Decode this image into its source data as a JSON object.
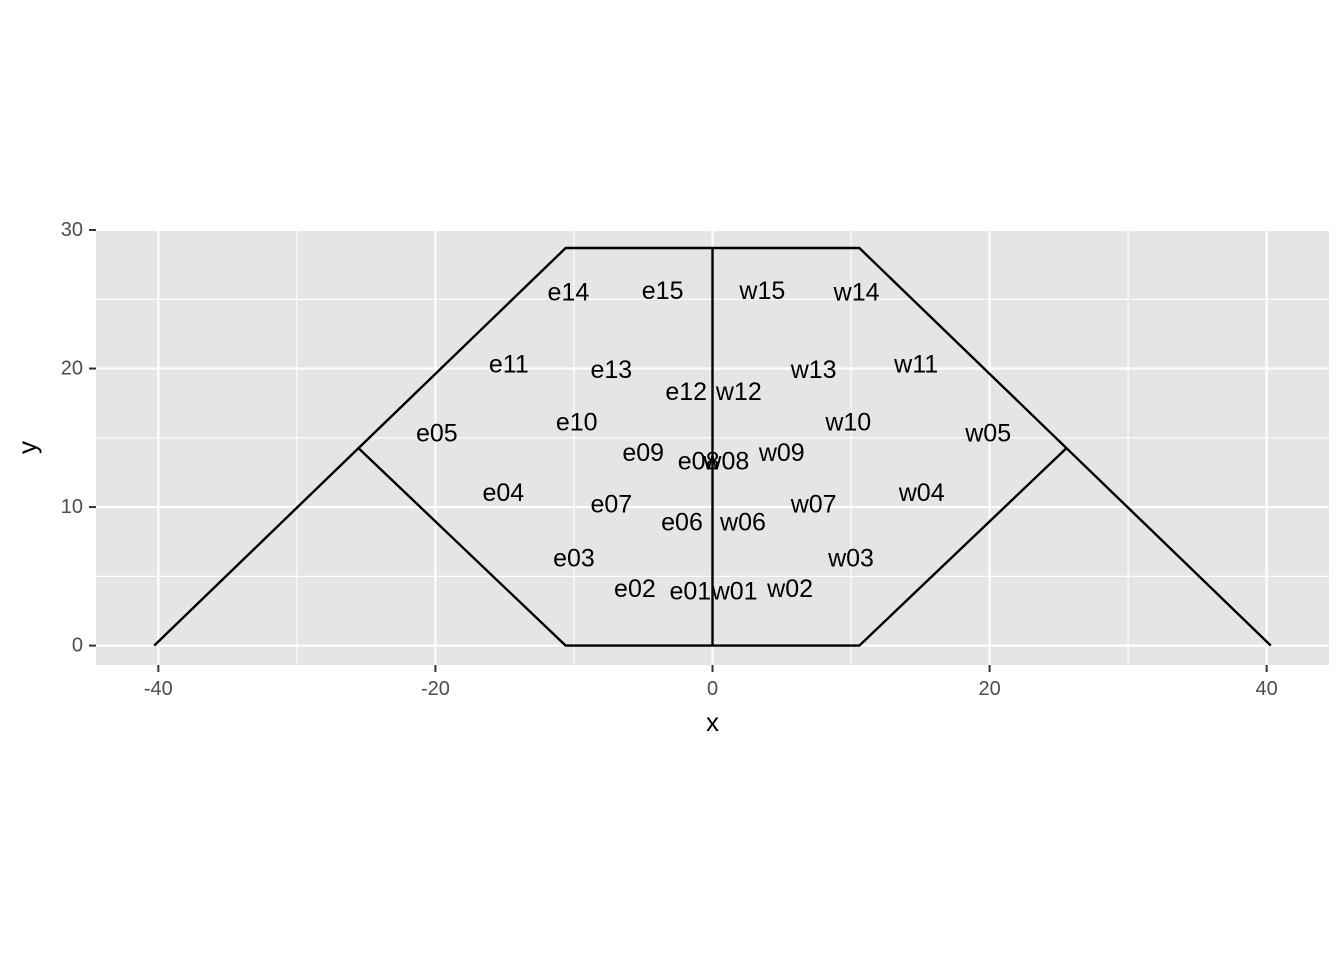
{
  "chart_data": {
    "type": "scatter",
    "title": "",
    "xlabel": "x",
    "ylabel": "y",
    "xlim": [
      -44.5,
      44.5
    ],
    "ylim": [
      -1.4,
      30
    ],
    "x_ticks": [
      -40,
      -20,
      0,
      20,
      40
    ],
    "x_tick_labels": [
      "-40",
      "-20",
      "0",
      "20",
      "40"
    ],
    "y_ticks": [
      0,
      10,
      20,
      30
    ],
    "y_tick_labels": [
      "0",
      "10",
      "20",
      "30"
    ],
    "x_minor_grid": [
      -30,
      -10,
      10,
      30
    ],
    "y_minor_grid": [
      5,
      15,
      25
    ],
    "grid": true,
    "panel_color": "#e5e5e5",
    "grid_color": "#ffffff",
    "line_color": "#000000",
    "outline_paths": [
      {
        "name": "outer-boundary",
        "points": [
          [
            -40.3,
            0
          ],
          [
            -10.6,
            28.7
          ],
          [
            10.6,
            28.7
          ],
          [
            40.3,
            0
          ]
        ]
      },
      {
        "name": "inner-left",
        "points": [
          [
            -25.6,
            14.3
          ],
          [
            -10.6,
            0
          ],
          [
            0,
            0
          ]
        ]
      },
      {
        "name": "inner-right",
        "points": [
          [
            0,
            0
          ],
          [
            10.6,
            0
          ],
          [
            25.6,
            14.3
          ]
        ]
      },
      {
        "name": "center-line",
        "points": [
          [
            0,
            0
          ],
          [
            0,
            28.7
          ]
        ]
      }
    ],
    "labels": [
      {
        "text": "e01",
        "x": -1.6,
        "y": 3.9
      },
      {
        "text": "e02",
        "x": -5.6,
        "y": 4.1
      },
      {
        "text": "e03",
        "x": -10.0,
        "y": 6.3
      },
      {
        "text": "e04",
        "x": -15.1,
        "y": 11.0
      },
      {
        "text": "e05",
        "x": -19.9,
        "y": 15.3
      },
      {
        "text": "e06",
        "x": -2.2,
        "y": 8.9
      },
      {
        "text": "e07",
        "x": -7.3,
        "y": 10.2
      },
      {
        "text": "e08",
        "x": -1.0,
        "y": 13.3
      },
      {
        "text": "e09",
        "x": -5.0,
        "y": 13.9
      },
      {
        "text": "e10",
        "x": -9.8,
        "y": 16.1
      },
      {
        "text": "e11",
        "x": -14.7,
        "y": 20.3
      },
      {
        "text": "e12",
        "x": -1.9,
        "y": 18.3
      },
      {
        "text": "e13",
        "x": -7.3,
        "y": 19.9
      },
      {
        "text": "e14",
        "x": -10.4,
        "y": 25.5
      },
      {
        "text": "e15",
        "x": -3.6,
        "y": 25.6
      },
      {
        "text": "w01",
        "x": 1.6,
        "y": 3.9
      },
      {
        "text": "w02",
        "x": 5.6,
        "y": 4.1
      },
      {
        "text": "w03",
        "x": 10.0,
        "y": 6.3
      },
      {
        "text": "w04",
        "x": 15.1,
        "y": 11.0
      },
      {
        "text": "w05",
        "x": 19.9,
        "y": 15.3
      },
      {
        "text": "w06",
        "x": 2.2,
        "y": 8.9
      },
      {
        "text": "w07",
        "x": 7.3,
        "y": 10.2
      },
      {
        "text": "w08",
        "x": 1.0,
        "y": 13.3
      },
      {
        "text": "w09",
        "x": 5.0,
        "y": 13.9
      },
      {
        "text": "w10",
        "x": 9.8,
        "y": 16.1
      },
      {
        "text": "w11",
        "x": 14.7,
        "y": 20.3
      },
      {
        "text": "w12",
        "x": 1.9,
        "y": 18.3
      },
      {
        "text": "w13",
        "x": 7.3,
        "y": 19.9
      },
      {
        "text": "w14",
        "x": 10.4,
        "y": 25.5
      },
      {
        "text": "w15",
        "x": 3.6,
        "y": 25.6
      }
    ]
  }
}
